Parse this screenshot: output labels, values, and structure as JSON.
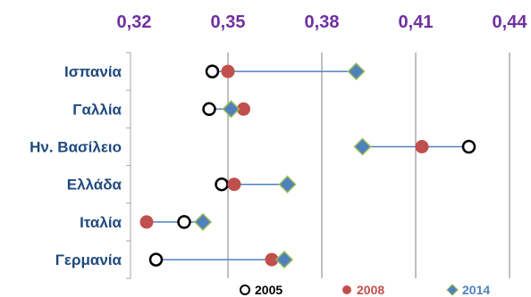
{
  "chart_data": {
    "type": "scatter",
    "title": "",
    "xlabel": "",
    "ylabel": "",
    "xlim": [
      0.32,
      0.44
    ],
    "x_ticks": [
      0.32,
      0.35,
      0.38,
      0.41,
      0.44
    ],
    "x_tick_labels": [
      "0,32",
      "0,35",
      "0,38",
      "0,41",
      "0,44"
    ],
    "x_axis_position": "top",
    "grid": "vertical",
    "legend_position": "bottom",
    "categories": [
      "Ισπανία",
      "Γαλλία",
      "Ην. Βασίλειο",
      "Ελλάδα",
      "Ιταλία",
      "Γερμανία"
    ],
    "series": [
      {
        "name": "2005",
        "marker": "open-circle",
        "color": "#000000",
        "values": [
          0.345,
          0.344,
          0.427,
          0.348,
          0.336,
          0.327
        ]
      },
      {
        "name": "2008",
        "marker": "filled-circle",
        "color": "#c0504d",
        "values": [
          0.35,
          0.355,
          0.412,
          0.352,
          0.324,
          0.364
        ]
      },
      {
        "name": "2014",
        "marker": "diamond",
        "color": "#4f81bd",
        "values": [
          0.391,
          0.351,
          0.393,
          0.369,
          0.342,
          0.368
        ]
      }
    ],
    "colors": {
      "tick_label": "#7030a0",
      "category_label": "#1f497d",
      "connector": "#4f81bd",
      "gridline": "#808080",
      "diamond_stroke": "#9bbb59",
      "circle_stroke": "#000000",
      "filled_circle_fill": "#c0504d"
    }
  }
}
